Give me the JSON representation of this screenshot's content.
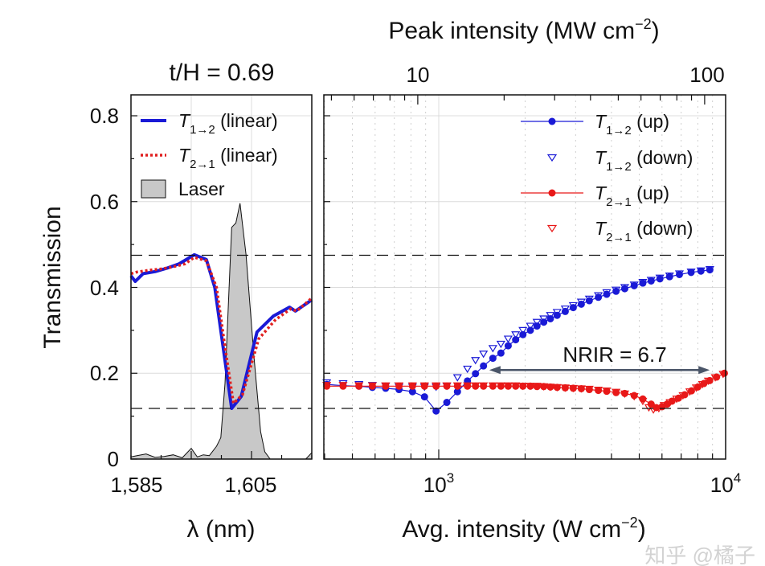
{
  "chart_data": [
    {
      "type": "line",
      "title": "t/H = 0.69",
      "title_parts": {
        "t": "t",
        "slash": "/",
        "h": "H",
        "rest": " = 0.69"
      },
      "xlabel": "λ (nm)",
      "ylabel": "Transmission",
      "xlim": [
        1585,
        1615
      ],
      "ylim": [
        0,
        0.85
      ],
      "xticks": [
        {
          "value": 1585,
          "label": "1,585"
        },
        {
          "value": 1605,
          "label": "1,605"
        }
      ],
      "yticks": [
        {
          "value": 0,
          "label": "0"
        },
        {
          "value": 0.2,
          "label": "0.2"
        },
        {
          "value": 0.4,
          "label": "0.4"
        },
        {
          "value": 0.6,
          "label": "0.6"
        },
        {
          "value": 0.8,
          "label": "0.8"
        }
      ],
      "grid": true,
      "reference_lines_y": [
        0.475,
        0.118
      ],
      "legend_position": "top-left",
      "series": [
        {
          "name": "T1→2 (linear)",
          "legend": {
            "sym": "T",
            "sub": "1→2",
            "rest": " (linear)"
          },
          "color": "#1a1ad6",
          "style": "solid",
          "x": [
            1585,
            1585.7,
            1587,
            1589,
            1591,
            1593,
            1595.5,
            1597.5,
            1598.9,
            1600.2,
            1601.7,
            1603.3,
            1605.9,
            1608.6,
            1611.3,
            1612.3,
            1615
          ],
          "y": [
            0.427,
            0.414,
            0.432,
            0.437,
            0.445,
            0.455,
            0.476,
            0.465,
            0.4,
            0.27,
            0.118,
            0.146,
            0.296,
            0.333,
            0.354,
            0.345,
            0.371
          ]
        },
        {
          "name": "T2→1 (linear)",
          "legend": {
            "sym": "T",
            "sub": "2→1",
            "rest": " (linear)"
          },
          "color": "#e02020",
          "style": "dotted",
          "x": [
            1585,
            1586,
            1588,
            1590,
            1592,
            1594,
            1595.5,
            1597.5,
            1599.2,
            1600.5,
            1602,
            1603.5,
            1606.2,
            1609,
            1611.5,
            1612.5,
            1615
          ],
          "y": [
            0.432,
            0.436,
            0.44,
            0.443,
            0.448,
            0.455,
            0.47,
            0.462,
            0.4,
            0.27,
            0.13,
            0.15,
            0.28,
            0.325,
            0.35,
            0.345,
            0.375
          ]
        },
        {
          "name": "Laser",
          "legend": {
            "sym": "",
            "sub": "",
            "rest": "Laser"
          },
          "color": "#c8c8c8",
          "style": "filled",
          "x": [
            1585,
            1586,
            1587.5,
            1589,
            1590.5,
            1592,
            1593.5,
            1595,
            1596,
            1597,
            1598,
            1599.2,
            1599.9,
            1600.6,
            1601.7,
            1602.4,
            1603.1,
            1604.1,
            1605.4,
            1606.5,
            1607.2,
            1608.1,
            1610,
            1612,
            1614,
            1615
          ],
          "y": [
            0.005,
            0.008,
            0.012,
            0.004,
            0.006,
            0.01,
            0.003,
            0.025,
            0.005,
            0.01,
            0.008,
            0.03,
            0.05,
            0.176,
            0.54,
            0.55,
            0.596,
            0.476,
            0.24,
            0.064,
            0.017,
            0.0,
            0.0,
            0.0,
            0.0,
            0.015
          ]
        }
      ]
    },
    {
      "type": "scatter",
      "xlabel": "Avg. intensity (W cm",
      "xlabel_sup": "−2",
      "xlabel_end": ")",
      "top_xlabel": "Peak intensity (MW cm",
      "top_xlabel_sup": "−2",
      "top_xlabel_end": ")",
      "x_scale": "log",
      "xlim": [
        400,
        10000
      ],
      "ylim": [
        0,
        0.85
      ],
      "xticks": [
        {
          "value": 1000,
          "base": "10",
          "exp": "3"
        },
        {
          "value": 10000,
          "base": "10",
          "exp": "4"
        }
      ],
      "top_xticks": [
        {
          "label": "10",
          "avg_intensity": 845
        },
        {
          "label": "100",
          "avg_intensity": 8450
        }
      ],
      "grid": true,
      "reference_lines_y": [
        0.475,
        0.118
      ],
      "legend_position": "top-right",
      "annotation": {
        "text": "NRIR = 6.7",
        "arrow_from_x": 1500,
        "arrow_to_x": 8800,
        "arrow_y": 0.2,
        "color": "#4a5568"
      },
      "series": [
        {
          "name": "T1→2 (up)",
          "legend": {
            "sym": "T",
            "sub": "1→2",
            "rest": " (up)"
          },
          "color": "#1a1ad6",
          "marker": "filled-circle",
          "line": true,
          "x": [
            407,
            464,
            527,
            587,
            653,
            727,
            810,
            892,
            979,
            1067,
            1162,
            1259,
            1343,
            1432,
            1544,
            1647,
            1746,
            1854,
            1965,
            2086,
            2200,
            2323,
            2450,
            2586,
            2760,
            2943,
            3140,
            3348,
            3600,
            3850,
            4150,
            4450,
            4800,
            5144,
            5500,
            5900,
            6377,
            6900,
            7580,
            8200,
            8811
          ],
          "y": [
            0.174,
            0.171,
            0.17,
            0.167,
            0.165,
            0.162,
            0.157,
            0.145,
            0.112,
            0.132,
            0.157,
            0.182,
            0.199,
            0.217,
            0.235,
            0.247,
            0.264,
            0.278,
            0.29,
            0.3,
            0.31,
            0.319,
            0.327,
            0.335,
            0.344,
            0.353,
            0.361,
            0.369,
            0.377,
            0.384,
            0.391,
            0.397,
            0.404,
            0.41,
            0.415,
            0.42,
            0.425,
            0.43,
            0.435,
            0.438,
            0.441
          ]
        },
        {
          "name": "T1→2 (down)",
          "legend": {
            "sym": "T",
            "sub": "1→2",
            "rest": " (down)"
          },
          "color": "#1a1ad6",
          "marker": "open-triangle-down",
          "line": false,
          "x": [
            407,
            464,
            527,
            587,
            653,
            727,
            810,
            892,
            979,
            1067,
            1162,
            1259,
            1343,
            1432,
            1544,
            1647,
            1746,
            1854,
            1965,
            2086,
            2200,
            2323,
            2450,
            2586,
            2760,
            2943,
            3140,
            3348,
            3600,
            3850,
            4150,
            4450,
            4800,
            5144,
            5500,
            5900,
            6377,
            6900,
            7580,
            8200,
            8811
          ],
          "y": [
            0.178,
            0.176,
            0.174,
            0.172,
            0.17,
            0.168,
            0.168,
            0.168,
            0.168,
            0.17,
            0.19,
            0.21,
            0.23,
            0.245,
            0.258,
            0.268,
            0.28,
            0.29,
            0.3,
            0.31,
            0.319,
            0.327,
            0.335,
            0.342,
            0.35,
            0.358,
            0.366,
            0.373,
            0.381,
            0.388,
            0.394,
            0.4,
            0.406,
            0.412,
            0.417,
            0.422,
            0.427,
            0.432,
            0.436,
            0.439,
            0.442
          ]
        },
        {
          "name": "T2→1 (up)",
          "legend": {
            "sym": "T",
            "sub": "2→1",
            "rest": " (up)"
          },
          "color": "#e81818",
          "marker": "filled-circle",
          "line": true,
          "x": [
            407,
            464,
            527,
            587,
            653,
            727,
            810,
            892,
            979,
            1067,
            1162,
            1259,
            1343,
            1432,
            1544,
            1647,
            1746,
            1854,
            1965,
            2086,
            2200,
            2323,
            2450,
            2586,
            2760,
            2943,
            3140,
            3348,
            3600,
            3850,
            4150,
            4450,
            4800,
            5144,
            5500,
            5730,
            6000,
            6250,
            6500,
            6850,
            7200,
            7600,
            8000,
            8400,
            8800,
            9300,
            9900
          ],
          "y": [
            0.17,
            0.17,
            0.17,
            0.17,
            0.17,
            0.17,
            0.17,
            0.17,
            0.17,
            0.17,
            0.17,
            0.17,
            0.17,
            0.17,
            0.17,
            0.17,
            0.17,
            0.17,
            0.17,
            0.17,
            0.169,
            0.169,
            0.168,
            0.167,
            0.166,
            0.165,
            0.164,
            0.162,
            0.16,
            0.158,
            0.155,
            0.153,
            0.148,
            0.14,
            0.128,
            0.12,
            0.122,
            0.128,
            0.135,
            0.142,
            0.15,
            0.159,
            0.168,
            0.176,
            0.183,
            0.191,
            0.2
          ]
        },
        {
          "name": "T2→1 (down)",
          "legend": {
            "sym": "T",
            "sub": "2→1",
            "rest": " (down)"
          },
          "color": "#e81818",
          "marker": "open-triangle-down",
          "line": false,
          "x": [
            407,
            464,
            527,
            587,
            653,
            727,
            810,
            892,
            979,
            1067,
            1162,
            1259,
            1343,
            1432,
            1544,
            1647,
            1746,
            1854,
            1965,
            2086,
            2200,
            2323,
            2450,
            2586,
            2760,
            2943,
            3140,
            3348,
            3600,
            3850,
            4150,
            4450,
            4800,
            5144,
            5400,
            5600,
            5850,
            6100,
            6400,
            6750,
            7100,
            7500,
            7900,
            8300,
            8700,
            9200,
            9800
          ],
          "y": [
            0.172,
            0.172,
            0.171,
            0.171,
            0.171,
            0.171,
            0.171,
            0.171,
            0.171,
            0.171,
            0.171,
            0.171,
            0.171,
            0.171,
            0.171,
            0.171,
            0.171,
            0.171,
            0.17,
            0.17,
            0.17,
            0.169,
            0.168,
            0.167,
            0.166,
            0.165,
            0.164,
            0.163,
            0.161,
            0.159,
            0.156,
            0.152,
            0.146,
            0.135,
            0.12,
            0.115,
            0.118,
            0.125,
            0.132,
            0.14,
            0.148,
            0.157,
            0.166,
            0.174,
            0.182,
            0.19,
            0.198
          ]
        }
      ]
    }
  ],
  "watermark": "知乎 @橘子"
}
